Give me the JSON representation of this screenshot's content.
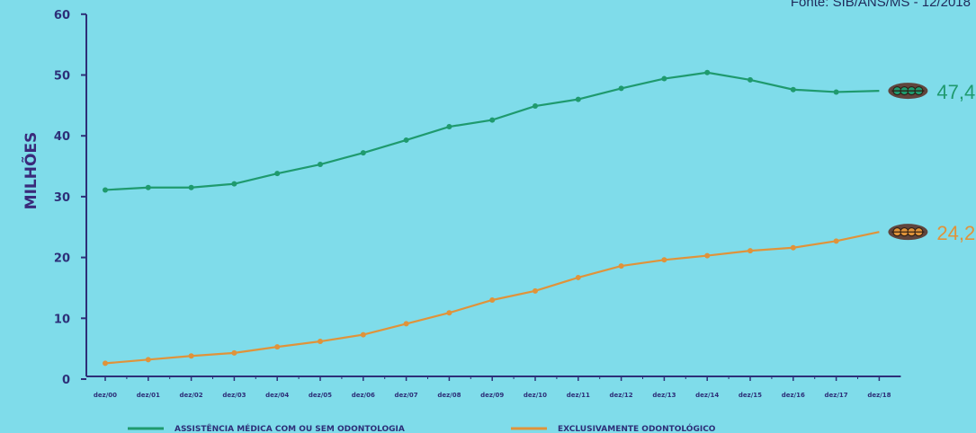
{
  "source_text": "Fonte: SIB/ANS/MS - 12/2018",
  "colors": {
    "background": "#7fdcea",
    "axis": "#2d2f78",
    "medical": "#1f9a6e",
    "dental": "#e0933a",
    "end_marker": "#5a2a1e"
  },
  "chart_data": {
    "type": "line",
    "title": "",
    "xlabel": "",
    "ylabel": "MILHÕES",
    "ylim": [
      0,
      60
    ],
    "yticks": [
      "0",
      "10",
      "20",
      "30",
      "40",
      "50",
      "60"
    ],
    "categories": [
      "dez/00",
      "dez/01",
      "dez/02",
      "dez/03",
      "dez/04",
      "dez/05",
      "dez/06",
      "dez/07",
      "dez/08",
      "dez/09",
      "dez/10",
      "dez/11",
      "dez/12",
      "dez/13",
      "dez/14",
      "dez/15",
      "dez/16",
      "dez/17",
      "dez/18"
    ],
    "series": [
      {
        "name": "ASSISTÊNCIA MÉDICA COM OU SEM ODONTOLOGIA",
        "color": "#1f9a6e",
        "values": [
          31.1,
          31.5,
          31.5,
          32.1,
          33.8,
          35.3,
          37.2,
          39.3,
          41.5,
          42.6,
          44.9,
          46.0,
          47.8,
          49.4,
          50.4,
          49.2,
          47.6,
          47.2,
          47.4
        ],
        "end_label": "47,4"
      },
      {
        "name": "EXCLUSIVAMENTE ODONTOLÓGICO",
        "color": "#e0933a",
        "values": [
          2.6,
          3.2,
          3.8,
          4.3,
          5.3,
          6.2,
          7.3,
          9.1,
          10.9,
          13.0,
          14.5,
          16.7,
          18.6,
          19.6,
          20.3,
          21.1,
          21.6,
          22.7,
          24.2
        ],
        "end_label": "24,2"
      }
    ],
    "legend_position": "bottom",
    "grid": false
  }
}
